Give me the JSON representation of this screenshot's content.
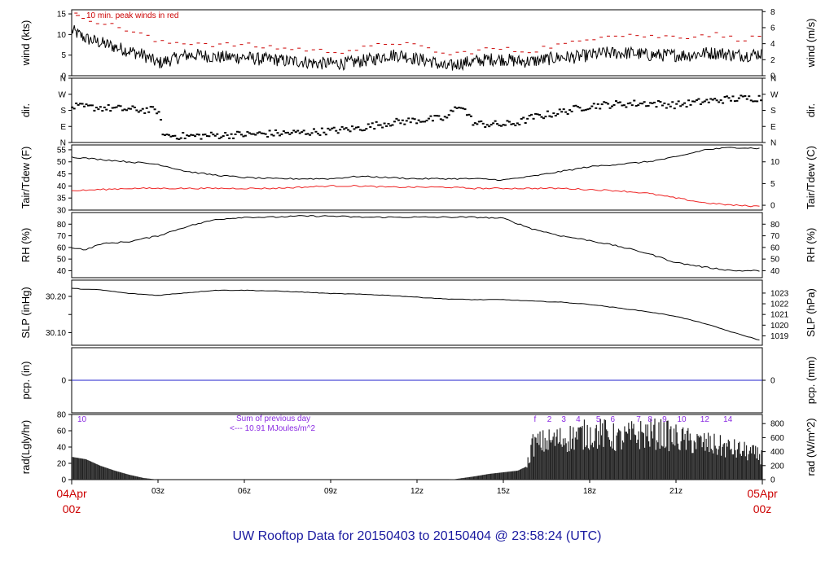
{
  "footer_title": "UW Rooftop Data for 20150403  to  20150404 @ 23:58:24  (UTC)",
  "colors": {
    "main": "#000000",
    "peak": "#cc0000",
    "dew": "#ee2222",
    "pcp": "#2222cc",
    "annot": "#8a2be2",
    "date": "#cc0000"
  },
  "x_axis": {
    "start_label": [
      "04Apr",
      "00z"
    ],
    "end_label": [
      "05Apr",
      "00z"
    ],
    "ticks": [
      {
        "h": 3,
        "label": "03z"
      },
      {
        "h": 6,
        "label": "06z"
      },
      {
        "h": 9,
        "label": "09z"
      },
      {
        "h": 12,
        "label": "12z"
      },
      {
        "h": 15,
        "label": "15z"
      },
      {
        "h": 18,
        "label": "18z"
      },
      {
        "h": 21,
        "label": "21z"
      }
    ],
    "range_hours": [
      0,
      24
    ]
  },
  "chart_data": [
    {
      "type": "line",
      "ylabel": "wind (kts)",
      "ylabel_right": "wind (m/s)",
      "ylim": [
        0,
        16
      ],
      "yticks": [
        0,
        5,
        10,
        15
      ],
      "right_ticks": [
        0,
        2,
        4,
        6,
        8
      ],
      "right_factor": 0.514444,
      "annotation": "10 min. peak winds in red",
      "series": [
        {
          "role": "mean",
          "x": [
            0,
            0.5,
            1,
            1.5,
            2,
            2.5,
            3,
            3.5,
            4,
            4.5,
            5,
            5.5,
            6,
            6.5,
            7,
            7.5,
            8,
            8.5,
            9,
            9.5,
            10,
            10.5,
            11,
            11.5,
            12,
            12.5,
            13,
            13.5,
            14,
            14.5,
            15,
            15.5,
            16,
            16.5,
            17,
            17.5,
            18,
            18.5,
            19,
            19.5,
            20,
            20.5,
            21,
            21.5,
            22,
            22.5,
            23,
            23.5,
            24
          ],
          "y": [
            11,
            9,
            8,
            7,
            6,
            5,
            3,
            4,
            5,
            5,
            4.5,
            4.5,
            4.5,
            4,
            4,
            3.5,
            3.5,
            3,
            3,
            3,
            3.5,
            4,
            5,
            5,
            4,
            3.5,
            2,
            3,
            3.5,
            4,
            4,
            3.5,
            3.5,
            4,
            4.5,
            4.5,
            5,
            5.5,
            5.5,
            5.5,
            5,
            5,
            5,
            5,
            5.5,
            5.5,
            5,
            5,
            5.5
          ]
        },
        {
          "role": "peak",
          "x": [
            0,
            0.5,
            1,
            1.5,
            2,
            2.5,
            3,
            3.5,
            4,
            4.5,
            5,
            5.5,
            6,
            6.5,
            7,
            7.5,
            8,
            8.5,
            9,
            9.5,
            10,
            10.5,
            11,
            11.5,
            12,
            12.5,
            13,
            13.5,
            14,
            14.5,
            15,
            15.5,
            16,
            16.5,
            17,
            17.5,
            18,
            18.5,
            19,
            19.5,
            20,
            20.5,
            21,
            21.5,
            22,
            22.5,
            23,
            23.5,
            24
          ],
          "y": [
            15,
            14,
            13,
            12,
            11,
            10,
            8,
            8,
            8,
            8,
            7.5,
            7.5,
            7.5,
            7,
            7,
            6.5,
            6.5,
            6,
            6,
            6,
            6.5,
            7,
            8,
            8,
            7,
            6.5,
            5,
            5.5,
            6,
            6.5,
            6.5,
            6,
            6,
            7,
            7.5,
            8,
            9,
            10,
            10,
            10,
            9.5,
            9.5,
            9.5,
            9.5,
            10,
            10,
            9,
            9,
            9.5
          ]
        }
      ]
    },
    {
      "type": "scatter",
      "ylabel": "dir.",
      "ylabel_right": "dir.",
      "ylim": [
        0,
        360
      ],
      "yticks": [
        {
          "v": 0,
          "label": "N"
        },
        {
          "v": 90,
          "label": "E"
        },
        {
          "v": 180,
          "label": "S"
        },
        {
          "v": 270,
          "label": "W"
        },
        {
          "v": 360,
          "label": "N"
        }
      ],
      "x": [
        0,
        1,
        2,
        3,
        3.2,
        4,
        5,
        6,
        7,
        8,
        9,
        10,
        11,
        12,
        13,
        13.5,
        14,
        15,
        15.5,
        16,
        17,
        18,
        19,
        20,
        21,
        22,
        23,
        24
      ],
      "y": [
        200,
        195,
        185,
        180,
        40,
        35,
        40,
        45,
        50,
        55,
        65,
        80,
        110,
        125,
        135,
        215,
        105,
        100,
        110,
        140,
        170,
        205,
        215,
        220,
        210,
        230,
        245,
        250
      ]
    },
    {
      "type": "line",
      "ylabel": "Tair/Tdew (F)",
      "ylabel_right": "Tair/Tdew (C)",
      "ylim": [
        30,
        57
      ],
      "yticks": [
        30,
        35,
        40,
        45,
        50,
        55
      ],
      "right_ticks": [
        0,
        5,
        10
      ],
      "series": [
        {
          "role": "tair",
          "x": [
            0,
            1,
            2,
            3,
            4,
            5,
            6,
            7,
            8,
            9,
            10,
            11,
            12,
            13,
            14,
            15,
            16,
            17,
            18,
            19,
            20,
            21,
            22,
            23,
            24
          ],
          "y": [
            52,
            51,
            50,
            49,
            46,
            44.5,
            43.5,
            43,
            43,
            43,
            44,
            43.5,
            43,
            43,
            43,
            42.5,
            44,
            46,
            48,
            49,
            50,
            52,
            55,
            56,
            55.5
          ]
        },
        {
          "role": "tdew",
          "x": [
            0,
            1,
            2,
            3,
            4,
            5,
            6,
            7,
            8,
            9,
            10,
            11,
            12,
            13,
            14,
            15,
            16,
            17,
            18,
            19,
            20,
            21,
            22,
            23,
            24
          ],
          "y": [
            38,
            38.5,
            39,
            39,
            39,
            39,
            39,
            39,
            39.5,
            40,
            40,
            39.5,
            39.5,
            39.5,
            39,
            39,
            39,
            39,
            38.5,
            38,
            37,
            35,
            33,
            32,
            31.5
          ]
        }
      ]
    },
    {
      "type": "line",
      "ylabel": "RH (%)",
      "ylabel_right": "RH (%)",
      "ylim": [
        34,
        90
      ],
      "yticks": [
        40,
        50,
        60,
        70,
        80
      ],
      "right_ticks": [
        40,
        50,
        60,
        70,
        80
      ],
      "x": [
        0,
        0.5,
        1,
        2,
        3,
        4,
        5,
        6,
        7,
        8,
        9,
        10,
        11,
        12,
        13,
        14,
        15,
        16,
        17,
        18,
        19,
        20,
        21,
        22,
        23,
        24
      ],
      "y": [
        60,
        58,
        63,
        65,
        70,
        78,
        84,
        86,
        86,
        87,
        87,
        86,
        86,
        86,
        86,
        86,
        85,
        76,
        70,
        66,
        61,
        55,
        47,
        43,
        40,
        40
      ]
    },
    {
      "type": "line",
      "ylabel": "SLP (inHg)",
      "ylabel_right": "SLP (hPa)",
      "ylim": [
        30.065,
        30.245
      ],
      "yticks": [
        30.1,
        30.15,
        30.2
      ],
      "ytick_labels": [
        "30.10",
        "",
        "30.20"
      ],
      "right_ticks": [
        1019,
        1020,
        1021,
        1022,
        1023
      ],
      "x": [
        0,
        1,
        2,
        3,
        4,
        5,
        6,
        7,
        8,
        9,
        10,
        11,
        12,
        13,
        14,
        15,
        16,
        17,
        18,
        19,
        20,
        21,
        22,
        23,
        24
      ],
      "y": [
        30.222,
        30.218,
        30.208,
        30.203,
        30.21,
        30.217,
        30.217,
        30.215,
        30.212,
        30.208,
        30.206,
        30.203,
        30.198,
        30.193,
        30.191,
        30.191,
        30.187,
        30.184,
        30.178,
        30.168,
        30.158,
        30.145,
        30.125,
        30.1,
        30.077
      ]
    },
    {
      "type": "line",
      "ylabel": "pcp. (in)",
      "ylabel_right": "pcp. (mm)",
      "ylim": [
        -1,
        1
      ],
      "yticks": [
        0
      ],
      "right_ticks": [
        0
      ],
      "x": [
        0,
        24
      ],
      "y": [
        0,
        0
      ]
    },
    {
      "type": "area",
      "ylabel": "rad(Lgly/hr)",
      "ylabel_right": "rad (W/m^2)",
      "ylim": [
        0,
        80
      ],
      "yticks": [
        0,
        20,
        40,
        60,
        80
      ],
      "right_ticks": [
        0,
        200,
        400,
        600,
        800
      ],
      "right_factor": 11.63,
      "annotation_left": "10",
      "annotation_sum": [
        "Sum of previous day",
        "<--- 10.91  MJoules/m^2"
      ],
      "hour_labels": [
        {
          "h": 16.1,
          "label": "f"
        },
        {
          "h": 16.6,
          "label": "2"
        },
        {
          "h": 17.1,
          "label": "3"
        },
        {
          "h": 17.6,
          "label": "4"
        },
        {
          "h": 18.3,
          "label": "5"
        },
        {
          "h": 18.8,
          "label": "6"
        },
        {
          "h": 19.7,
          "label": "7"
        },
        {
          "h": 20.1,
          "label": "8"
        },
        {
          "h": 20.6,
          "label": "9"
        },
        {
          "h": 21.2,
          "label": "10"
        },
        {
          "h": 22.0,
          "label": "12"
        },
        {
          "h": 22.8,
          "label": "14"
        }
      ],
      "x": [
        0,
        0.5,
        1,
        1.5,
        2,
        2.5,
        3,
        3.5,
        13,
        13.3,
        14,
        14.5,
        15,
        15.5,
        15.8,
        16,
        16.5,
        17,
        17.5,
        18,
        18.5,
        19,
        19.5,
        20,
        20.5,
        21,
        21.5,
        22,
        22.5,
        23,
        23.5,
        24
      ],
      "y": [
        28,
        25,
        17,
        11,
        6,
        2,
        0,
        0,
        0,
        0.5,
        4,
        7,
        9,
        11,
        16,
        50,
        55,
        58,
        62,
        66,
        66,
        58,
        64,
        66,
        66,
        60,
        55,
        52,
        48,
        44,
        40,
        33
      ]
    }
  ]
}
